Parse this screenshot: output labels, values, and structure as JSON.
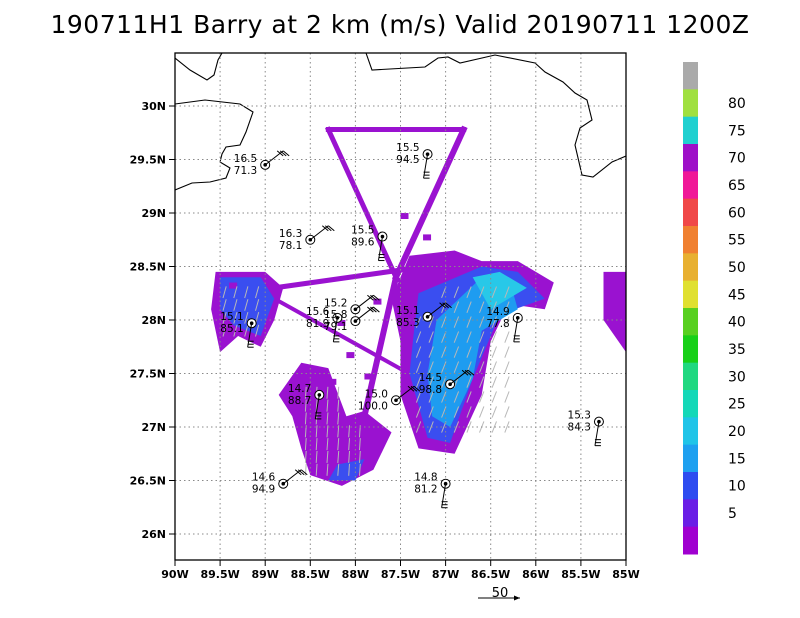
{
  "title": "190711H1 Barry at 2 km (m/s) Valid 20190711 1200Z",
  "reference_vector_label": "50",
  "chart_data": {
    "type": "map",
    "title": "190711H1 Barry at 2 km (m/s) Valid 20190711 1200Z",
    "lon_range": [
      -90,
      -85
    ],
    "lat_range": [
      25.75,
      30.5
    ],
    "grid": true,
    "lon_ticks": [
      "90W",
      "89.5W",
      "89W",
      "88.5W",
      "88W",
      "87.5W",
      "87W",
      "86.5W",
      "86W",
      "85.5W",
      "85W"
    ],
    "lat_ticks": [
      "26N",
      "26.5N",
      "27N",
      "27.5N",
      "28N",
      "28.5N",
      "29N",
      "29.5N",
      "30N"
    ],
    "colorbar": {
      "labels": [
        "5",
        "10",
        "15",
        "20",
        "25",
        "30",
        "35",
        "40",
        "45",
        "50",
        "55",
        "60",
        "65",
        "70",
        "75",
        "80"
      ],
      "colors": [
        "#a000d0",
        "#6a1ee6",
        "#2e4cf0",
        "#1ea0f0",
        "#20c4e8",
        "#14d8b8",
        "#20d880",
        "#18d018",
        "#58d020",
        "#e0e030",
        "#e8b030",
        "#f08030",
        "#f04848",
        "#f01898",
        "#9e10c8",
        "#20d0d0",
        "#a0e040",
        "#aaaaaa"
      ]
    },
    "stations": [
      {
        "speed": "16.5",
        "dir": "71.3",
        "lon": -89.0,
        "lat": 29.45
      },
      {
        "speed": "15.5",
        "dir": "94.5",
        "lon": -87.2,
        "lat": 29.55
      },
      {
        "speed": "16.3",
        "dir": "78.1",
        "lon": -88.5,
        "lat": 28.75
      },
      {
        "speed": "15.5",
        "dir": "89.6",
        "lon": -87.7,
        "lat": 28.78
      },
      {
        "speed": "15.2",
        "dir": "",
        "lon": -88.0,
        "lat": 28.1
      },
      {
        "speed": "15.6",
        "dir": "81.9",
        "lon": -88.2,
        "lat": 28.02
      },
      {
        "speed": "15.8",
        "dir": "79.1",
        "lon": -88.0,
        "lat": 27.99
      },
      {
        "speed": "15.1",
        "dir": "85.1",
        "lon": -89.15,
        "lat": 27.97
      },
      {
        "speed": "15.1",
        "dir": "85.3",
        "lon": -87.2,
        "lat": 28.03
      },
      {
        "speed": "14.9",
        "dir": "77.8",
        "lon": -86.2,
        "lat": 28.02
      },
      {
        "speed": "14.5",
        "dir": "98.8",
        "lon": -86.95,
        "lat": 27.4
      },
      {
        "speed": "14.7",
        "dir": "88.7",
        "lon": -88.4,
        "lat": 27.3
      },
      {
        "speed": "15.0",
        "dir": "100.0",
        "lon": -87.55,
        "lat": 27.25
      },
      {
        "speed": "15.3",
        "dir": "84.3",
        "lon": -85.3,
        "lat": 27.05
      },
      {
        "speed": "14.6",
        "dir": "94.9",
        "lon": -88.8,
        "lat": 26.47
      },
      {
        "speed": "14.8",
        "dir": "81.2",
        "lon": -87.0,
        "lat": 26.47
      }
    ]
  }
}
